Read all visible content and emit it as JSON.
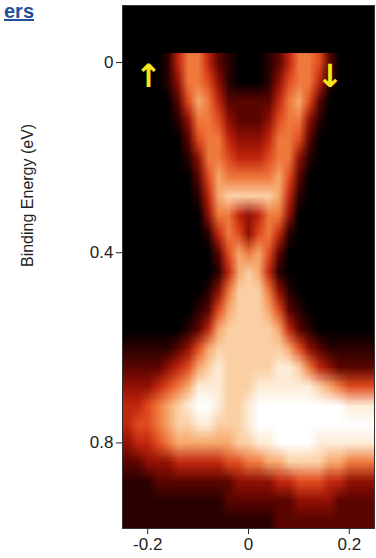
{
  "chart_data": {
    "type": "heatmap",
    "title": "ers",
    "y_label": "Binding Energy (eV)",
    "xlim": [
      -0.25,
      0.25
    ],
    "xticks": [
      -0.2,
      0,
      0.2
    ],
    "ylim": [
      -0.12,
      0.98
    ],
    "yticks": [
      0,
      0.4,
      0.8
    ],
    "zlim": [
      0,
      10
    ],
    "annotations": [
      {
        "text": "↑",
        "x": -0.198,
        "y": 0.03
      },
      {
        "text": "↓",
        "x": 0.162,
        "y": 0.03
      }
    ],
    "x": [
      -0.24,
      -0.22,
      -0.2,
      -0.18,
      -0.16,
      -0.14,
      -0.12,
      -0.1,
      -0.08,
      -0.06,
      -0.04,
      -0.02,
      0,
      0.02,
      0.04,
      0.06,
      0.08,
      0.1,
      0.12,
      0.14,
      0.16,
      0.18,
      0.2,
      0.22,
      0.24
    ],
    "y": [
      0,
      0.04,
      0.08,
      0.12,
      0.16,
      0.2,
      0.24,
      0.28,
      0.32,
      0.36,
      0.4,
      0.44,
      0.48,
      0.52,
      0.56,
      0.6,
      0.64,
      0.68,
      0.72,
      0.76,
      0.8,
      0.84,
      0.88,
      0.92,
      0.96
    ],
    "z": [
      [
        0,
        0,
        0,
        0,
        1,
        4,
        6,
        6,
        4,
        2,
        1,
        0,
        0,
        0,
        1,
        2,
        4,
        6,
        6,
        5,
        2,
        0,
        0,
        0,
        0
      ],
      [
        0,
        0,
        0,
        0,
        1,
        3,
        6,
        6,
        5,
        3,
        1,
        0,
        0,
        0,
        1,
        3,
        5,
        6,
        6,
        4,
        1,
        0,
        0,
        0,
        0
      ],
      [
        0,
        0,
        0,
        0,
        0,
        2,
        5,
        7,
        6,
        4,
        2,
        2,
        2,
        2,
        2,
        4,
        6,
        7,
        5,
        2,
        0,
        0,
        0,
        0,
        0
      ],
      [
        0,
        0,
        0,
        0,
        0,
        1,
        3,
        6,
        6,
        5,
        3,
        2,
        2,
        2,
        3,
        5,
        6,
        6,
        3,
        1,
        0,
        0,
        0,
        0,
        0
      ],
      [
        0,
        0,
        0,
        0,
        0,
        0,
        2,
        5,
        6,
        6,
        4,
        3,
        3,
        3,
        4,
        6,
        6,
        5,
        2,
        0,
        0,
        0,
        0,
        0,
        0
      ],
      [
        0,
        0,
        0,
        0,
        0,
        0,
        1,
        3,
        6,
        6,
        5,
        4,
        4,
        4,
        5,
        6,
        6,
        3,
        1,
        0,
        0,
        0,
        0,
        0,
        0
      ],
      [
        0,
        0,
        0,
        0,
        0,
        0,
        0,
        2,
        5,
        7,
        6,
        6,
        6,
        6,
        6,
        7,
        5,
        2,
        0,
        0,
        0,
        0,
        0,
        0,
        0
      ],
      [
        0,
        0,
        0,
        0,
        0,
        0,
        0,
        1,
        4,
        7,
        8,
        8,
        8,
        8,
        8,
        7,
        4,
        1,
        0,
        0,
        0,
        0,
        0,
        0,
        0
      ],
      [
        0,
        0,
        0,
        0,
        0,
        0,
        0,
        0,
        3,
        6,
        6,
        4,
        3,
        4,
        6,
        6,
        3,
        0,
        0,
        0,
        0,
        0,
        0,
        0,
        0
      ],
      [
        0,
        0,
        0,
        0,
        0,
        0,
        0,
        0,
        1,
        4,
        6,
        5,
        3,
        5,
        6,
        4,
        1,
        0,
        0,
        0,
        0,
        0,
        0,
        0,
        0
      ],
      [
        0,
        0,
        0,
        0,
        0,
        0,
        0,
        0,
        0,
        2,
        5,
        7,
        6,
        7,
        5,
        2,
        0,
        0,
        0,
        0,
        0,
        0,
        0,
        0,
        0
      ],
      [
        0,
        0,
        0,
        0,
        0,
        0,
        0,
        0,
        0,
        1,
        4,
        7,
        8,
        7,
        4,
        1,
        0,
        0,
        0,
        0,
        0,
        0,
        0,
        0,
        0
      ],
      [
        0,
        0,
        0,
        0,
        0,
        0,
        0,
        0,
        1,
        3,
        6,
        8,
        8,
        8,
        6,
        3,
        1,
        0,
        0,
        0,
        0,
        0,
        0,
        0,
        0
      ],
      [
        0,
        0,
        0,
        0,
        0,
        0,
        0,
        1,
        2,
        5,
        7,
        8,
        8,
        8,
        7,
        5,
        2,
        1,
        0,
        0,
        0,
        0,
        0,
        0,
        0
      ],
      [
        0,
        0,
        0,
        0,
        0,
        0,
        1,
        2,
        4,
        7,
        8,
        8,
        8,
        8,
        8,
        7,
        4,
        2,
        1,
        0,
        0,
        0,
        0,
        0,
        0
      ],
      [
        1,
        1,
        1,
        1,
        1,
        2,
        3,
        5,
        7,
        8,
        8,
        8,
        8,
        8,
        8,
        8,
        7,
        5,
        3,
        2,
        1,
        1,
        1,
        1,
        1
      ],
      [
        2,
        2,
        2,
        2,
        3,
        4,
        5,
        7,
        8,
        9,
        8,
        8,
        8,
        8,
        8,
        9,
        9,
        8,
        6,
        4,
        3,
        2,
        2,
        2,
        2
      ],
      [
        3,
        3,
        3,
        4,
        5,
        6,
        7,
        9,
        9,
        9,
        8,
        8,
        8,
        9,
        9,
        9,
        9,
        9,
        9,
        8,
        7,
        6,
        5,
        5,
        5
      ],
      [
        4,
        4,
        5,
        6,
        7,
        8,
        9,
        10,
        10,
        9,
        8,
        8,
        9,
        10,
        10,
        10,
        10,
        10,
        10,
        10,
        10,
        10,
        9,
        9,
        9
      ],
      [
        4,
        5,
        5,
        6,
        7,
        8,
        8,
        9,
        9,
        8,
        8,
        8,
        9,
        10,
        10,
        10,
        10,
        10,
        10,
        10,
        10,
        10,
        10,
        10,
        10
      ],
      [
        3,
        4,
        4,
        5,
        6,
        7,
        7,
        7,
        7,
        7,
        7,
        8,
        8,
        9,
        9,
        10,
        10,
        10,
        10,
        9,
        9,
        9,
        9,
        9,
        9
      ],
      [
        2,
        2,
        3,
        3,
        3,
        4,
        4,
        4,
        4,
        4,
        5,
        5,
        6,
        6,
        7,
        7,
        8,
        8,
        8,
        8,
        7,
        7,
        6,
        6,
        6
      ],
      [
        1,
        1,
        1,
        2,
        2,
        2,
        2,
        2,
        2,
        2,
        2,
        3,
        3,
        3,
        3,
        4,
        4,
        5,
        5,
        5,
        4,
        4,
        3,
        3,
        3
      ],
      [
        1,
        1,
        1,
        1,
        1,
        1,
        1,
        1,
        1,
        1,
        2,
        2,
        2,
        2,
        2,
        2,
        2,
        3,
        3,
        3,
        3,
        2,
        2,
        2,
        2
      ],
      [
        1,
        1,
        1,
        1,
        1,
        1,
        1,
        1,
        1,
        1,
        1,
        1,
        1,
        1,
        1,
        2,
        2,
        2,
        2,
        2,
        2,
        2,
        2,
        2,
        2
      ]
    ]
  }
}
